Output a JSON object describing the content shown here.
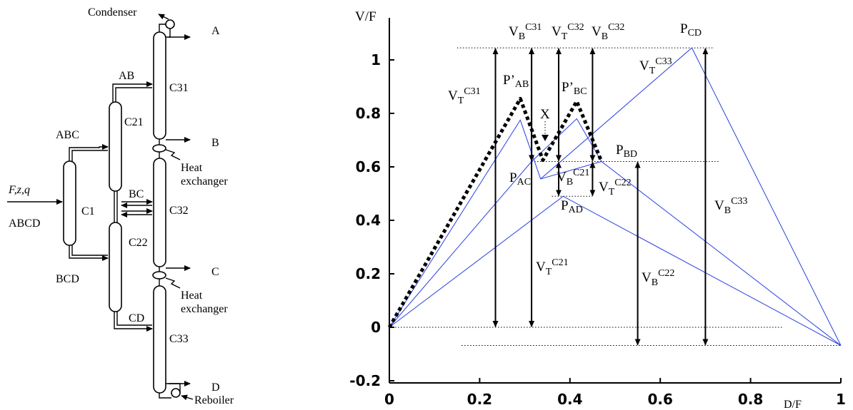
{
  "flowsheet": {
    "columns": [
      "C1",
      "C21",
      "C22",
      "C31",
      "C32",
      "C33"
    ],
    "streams": {
      "feed": "F,z,q",
      "feed_comp": "ABCD",
      "ab": "AB",
      "abc": "ABC",
      "bc": "BC",
      "bcd": "BCD",
      "cd": "CD"
    },
    "products": [
      "A",
      "B",
      "C",
      "D"
    ],
    "equipment": {
      "condenser": "Condenser",
      "heat1a": "Heat",
      "heat1b": "exchanger",
      "heat2a": "Heat",
      "heat2b": "exchanger",
      "reboiler": "Reboiler"
    }
  },
  "chart_data": {
    "type": "line",
    "xlabel": "D/F",
    "ylabel": "V/F",
    "xlim": [
      0,
      1
    ],
    "ylim": [
      -0.2,
      1.05
    ],
    "x_ticks": [
      "0",
      "0.2",
      "0.4",
      "0.6",
      "0.8",
      "1"
    ],
    "y_ticks": [
      "-0.2",
      "0",
      "0.2",
      "0.4",
      "0.6",
      "0.8",
      "1"
    ],
    "series": [
      {
        "style": "blue",
        "points": [
          [
            0,
            0
          ],
          [
            0.29,
            0.775
          ],
          [
            0.335,
            0.555
          ],
          [
            0.67,
            1.045
          ],
          [
            1,
            -0.068
          ]
        ]
      },
      {
        "style": "blue",
        "points": [
          [
            0,
            0
          ],
          [
            0.385,
            0.49
          ],
          [
            1,
            -0.068
          ]
        ]
      },
      {
        "style": "blue",
        "points": [
          [
            0,
            0
          ],
          [
            0.315,
            0.62
          ],
          [
            0.415,
            0.78
          ],
          [
            0.47,
            0.62
          ],
          [
            1,
            -0.068
          ]
        ]
      },
      {
        "style": "blue",
        "points": [
          [
            0.335,
            0.555
          ],
          [
            0.47,
            0.62
          ]
        ]
      },
      {
        "style": "thick-dotted",
        "points": [
          [
            0,
            0
          ],
          [
            0.29,
            0.855
          ],
          [
            0.34,
            0.625
          ],
          [
            0.415,
            0.845
          ],
          [
            0.47,
            0.62
          ]
        ]
      }
    ],
    "guides": [
      {
        "y": 1.045,
        "x1": 0.15,
        "x2": 0.72
      },
      {
        "y": 0.62,
        "x1": 0.315,
        "x2": 0.73
      },
      {
        "y": 0.49,
        "x1": 0.36,
        "x2": 0.45
      },
      {
        "y": 0.0,
        "x1": 0.0,
        "x2": 0.87
      },
      {
        "y": -0.068,
        "x1": 0.16,
        "x2": 1.0
      }
    ],
    "vertical_arrows": [
      {
        "x": 0.235,
        "y1": 0.0,
        "y2": 1.045
      },
      {
        "x": 0.315,
        "y1": 0.0,
        "y2": 1.045
      },
      {
        "x": 0.315,
        "y1": 0.62,
        "y2": 1.045
      },
      {
        "x": 0.375,
        "y1": 0.62,
        "y2": 1.045
      },
      {
        "x": 0.45,
        "y1": 0.62,
        "y2": 1.045
      },
      {
        "x": 0.375,
        "y1": 0.49,
        "y2": 0.62
      },
      {
        "x": 0.45,
        "y1": 0.49,
        "y2": 0.62
      },
      {
        "x": 0.55,
        "y1": -0.068,
        "y2": 0.62
      },
      {
        "x": 0.7,
        "y1": -0.068,
        "y2": 1.045
      }
    ],
    "annotations": {
      "pcd": "P",
      "pcd_sub": "CD",
      "vt33": "V",
      "vt33_sub": "T",
      "vt33_sup": "C33",
      "vt31": "V",
      "vt31_sub": "T",
      "vt31_sup": "C31",
      "vb31": "V",
      "vb31_sub": "B",
      "vb31_sup": "C31",
      "vt32": "V",
      "vt32_sub": "T",
      "vt32_sup": "C32",
      "vb32": "V",
      "vb32_sub": "B",
      "vb32_sup": "C32",
      "pab": "P’",
      "pab_sub": "AB",
      "pbc": "P’",
      "pbc_sub": "BC",
      "x": "X",
      "pbd": "P",
      "pbd_sub": "BD",
      "pac": "P",
      "pac_sub": "AC",
      "vb21": "V",
      "vb21_sub": "B",
      "vb21_sup": "C21",
      "vt22": "V",
      "vt22_sub": "T",
      "vt22_sup": "C22",
      "pad": "P",
      "pad_sub": "AD",
      "vb33": "V",
      "vb33_sub": "B",
      "vb33_sup": "C33",
      "vt21": "V",
      "vt21_sub": "T",
      "vt21_sup": "C21",
      "vb22": "V",
      "vb22_sub": "B",
      "vb22_sup": "C22"
    }
  }
}
